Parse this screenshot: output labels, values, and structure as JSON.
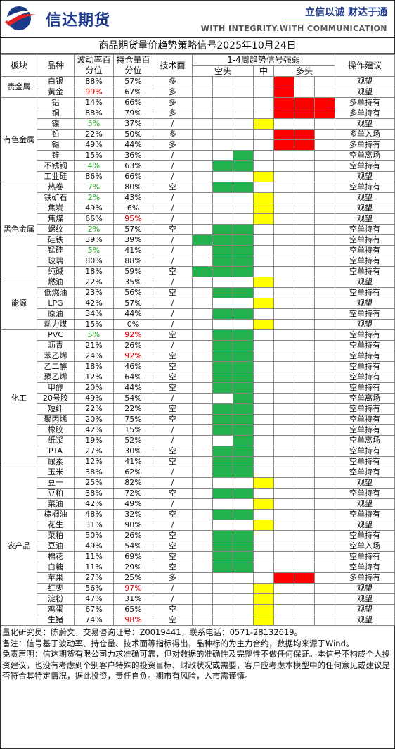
{
  "header": {
    "brand": "信达期货",
    "slogan": "立信以诚  财达于通",
    "tagline": "WITH INTEGRITY.WITH COMMUNICATION"
  },
  "title": "商品期货量价趋势策略信号2025年10月24日",
  "columns": {
    "sector": "板块",
    "variety": "品种",
    "volatility": "波动率百分位",
    "open_interest": "持仓量百分位",
    "technical": "技术面",
    "signal": "1-4周趋势信号强弱",
    "short": "空头",
    "mid": "中",
    "long": "多头",
    "advice": "操作建议"
  },
  "colors": {
    "red": "#ff0000",
    "green": "#22b14c",
    "yellow": "#ffff00",
    "red_text": "#e00000",
    "green_text": "#1fa51f"
  },
  "groups": [
    {
      "sector": "贵金属",
      "rows": [
        {
          "name": "白银",
          "vol": "88%",
          "oi": "57%",
          "tech": "多",
          "sig": "L1",
          "advice": "观望"
        },
        {
          "name": "黄金",
          "vol": "99%",
          "vol_color": "red",
          "oi": "67%",
          "tech": "多",
          "sig": "L1",
          "advice": "观望"
        }
      ]
    },
    {
      "sector": "有色金属",
      "rows": [
        {
          "name": "铝",
          "vol": "14%",
          "oi": "66%",
          "tech": "多",
          "sig": "L3",
          "advice": "多单持有"
        },
        {
          "name": "铜",
          "vol": "88%",
          "oi": "79%",
          "tech": "多",
          "sig": "L3",
          "advice": "多单持有"
        },
        {
          "name": "镍",
          "vol": "5%",
          "vol_color": "green",
          "oi": "37%",
          "tech": "/",
          "sig": "M",
          "advice": "观望"
        },
        {
          "name": "铅",
          "vol": "22%",
          "oi": "50%",
          "tech": "多",
          "sig": "L2",
          "advice": "多单入场"
        },
        {
          "name": "锡",
          "vol": "49%",
          "oi": "44%",
          "tech": "多",
          "sig": "L2",
          "advice": "多单持有"
        },
        {
          "name": "锌",
          "vol": "15%",
          "oi": "36%",
          "tech": "/",
          "sig": "S1",
          "advice": "空单离场"
        },
        {
          "name": "不锈钢",
          "vol": "4%",
          "vol_color": "green",
          "oi": "63%",
          "tech": "/",
          "sig": "S2",
          "advice": "空单持有"
        },
        {
          "name": "工业硅",
          "vol": "86%",
          "oi": "66%",
          "tech": "/",
          "sig": "M",
          "advice": "观望"
        }
      ]
    },
    {
      "sector": "黑色金属",
      "rows": [
        {
          "name": "热卷",
          "vol": "7%",
          "vol_color": "green",
          "oi": "80%",
          "tech": "空",
          "sig": "S2",
          "advice": "空单持有"
        },
        {
          "name": "铁矿石",
          "vol": "2%",
          "vol_color": "green",
          "oi": "43%",
          "tech": "/",
          "sig": "M",
          "advice": "观望"
        },
        {
          "name": "焦炭",
          "vol": "49%",
          "oi": "6%",
          "tech": "/",
          "sig": "M",
          "advice": "观望"
        },
        {
          "name": "焦煤",
          "vol": "66%",
          "oi": "95%",
          "oi_color": "red",
          "tech": "/",
          "sig": "M",
          "advice": "观望"
        },
        {
          "name": "螺纹",
          "vol": "2%",
          "vol_color": "green",
          "oi": "57%",
          "tech": "空",
          "sig": "S2",
          "advice": "空单持有"
        },
        {
          "name": "硅铁",
          "vol": "39%",
          "oi": "39%",
          "tech": "/",
          "sig": "S3",
          "advice": "空单持有"
        },
        {
          "name": "锰硅",
          "vol": "5%",
          "vol_color": "green",
          "oi": "41%",
          "tech": "/",
          "sig": "S2",
          "advice": "空单持有"
        },
        {
          "name": "玻璃",
          "vol": "80%",
          "oi": "88%",
          "tech": "/",
          "sig": "S2",
          "advice": "空单持有"
        },
        {
          "name": "纯碱",
          "vol": "18%",
          "oi": "59%",
          "tech": "空",
          "sig": "S3",
          "advice": "空单持有"
        }
      ]
    },
    {
      "sector": "能源",
      "rows": [
        {
          "name": "燃油",
          "vol": "22%",
          "oi": "35%",
          "tech": "/",
          "sig": "M",
          "advice": "观望"
        },
        {
          "name": "低燃油",
          "vol": "23%",
          "oi": "56%",
          "tech": "空",
          "sig": "S2",
          "advice": "空单持有"
        },
        {
          "name": "LPG",
          "vol": "42%",
          "oi": "57%",
          "tech": "/",
          "sig": "M",
          "advice": "观望"
        },
        {
          "name": "原油",
          "vol": "34%",
          "oi": "44%",
          "tech": "/",
          "sig": "S2",
          "advice": "空单持有"
        },
        {
          "name": "动力煤",
          "vol": "15%",
          "oi": "0%",
          "tech": "/",
          "sig": "M",
          "advice": "观望"
        }
      ]
    },
    {
      "sector": "化工",
      "rows": [
        {
          "name": "PVC",
          "vol": "5%",
          "vol_color": "green",
          "oi": "92%",
          "oi_color": "red",
          "tech": "空",
          "sig": "S2",
          "advice": "空单持有"
        },
        {
          "name": "沥青",
          "vol": "21%",
          "oi": "26%",
          "tech": "/",
          "sig": "S2",
          "advice": "空单持有"
        },
        {
          "name": "苯乙烯",
          "vol": "24%",
          "oi": "92%",
          "oi_color": "red",
          "tech": "空",
          "sig": "S2",
          "advice": "空单持有"
        },
        {
          "name": "乙二醇",
          "vol": "18%",
          "oi": "46%",
          "tech": "空",
          "sig": "S2",
          "advice": "空单持有"
        },
        {
          "name": "聚乙烯",
          "vol": "12%",
          "oi": "64%",
          "tech": "空",
          "sig": "S2",
          "advice": "空单持有"
        },
        {
          "name": "甲醇",
          "vol": "20%",
          "oi": "44%",
          "tech": "空",
          "sig": "S2",
          "advice": "空单持有"
        },
        {
          "name": "20号胶",
          "vol": "49%",
          "oi": "54%",
          "tech": "/",
          "sig": "S1",
          "advice": "空单离场"
        },
        {
          "name": "短纤",
          "vol": "22%",
          "oi": "22%",
          "tech": "空",
          "sig": "S2",
          "advice": "空单持有"
        },
        {
          "name": "聚丙烯",
          "vol": "20%",
          "oi": "75%",
          "tech": "空",
          "sig": "S2",
          "advice": "空单持有"
        },
        {
          "name": "橡胶",
          "vol": "42%",
          "oi": "15%",
          "tech": "/",
          "sig": "S2",
          "advice": "空单持有"
        },
        {
          "name": "纸浆",
          "vol": "19%",
          "oi": "52%",
          "tech": "/",
          "sig": "S1",
          "advice": "空单离场"
        },
        {
          "name": "PTA",
          "vol": "27%",
          "oi": "30%",
          "tech": "空",
          "sig": "S2",
          "advice": "空单持有"
        },
        {
          "name": "尿素",
          "vol": "12%",
          "oi": "41%",
          "tech": "空",
          "sig": "S2",
          "advice": "空单持有"
        }
      ]
    },
    {
      "sector": "农产品",
      "rows": [
        {
          "name": "玉米",
          "vol": "38%",
          "oi": "62%",
          "tech": "/",
          "sig": "S2",
          "advice": "空单持有"
        },
        {
          "name": "豆一",
          "vol": "25%",
          "oi": "82%",
          "tech": "/",
          "sig": "M",
          "advice": "观望"
        },
        {
          "name": "豆粕",
          "vol": "38%",
          "oi": "72%",
          "tech": "空",
          "sig": "S2",
          "advice": "空单持有"
        },
        {
          "name": "菜油",
          "vol": "42%",
          "oi": "49%",
          "tech": "/",
          "sig": "M",
          "advice": "观望"
        },
        {
          "name": "棕榈油",
          "vol": "48%",
          "oi": "32%",
          "tech": "空",
          "sig": "S2",
          "advice": "空单持有"
        },
        {
          "name": "花生",
          "vol": "31%",
          "oi": "90%",
          "tech": "/",
          "sig": "M",
          "advice": "观望"
        },
        {
          "name": "菜粕",
          "vol": "50%",
          "oi": "26%",
          "tech": "空",
          "sig": "S2",
          "advice": "空单持有"
        },
        {
          "name": "豆油",
          "vol": "49%",
          "oi": "54%",
          "tech": "空",
          "sig": "S2",
          "advice": "空单入场"
        },
        {
          "name": "棉花",
          "vol": "11%",
          "oi": "69%",
          "tech": "空",
          "sig": "S2",
          "advice": "空单持有"
        },
        {
          "name": "白糖",
          "vol": "11%",
          "oi": "29%",
          "tech": "空",
          "sig": "S2",
          "advice": "空单持有"
        },
        {
          "name": "苹果",
          "vol": "27%",
          "oi": "25%",
          "tech": "多",
          "sig": "L2",
          "advice": "多单持有"
        },
        {
          "name": "红枣",
          "vol": "56%",
          "oi": "97%",
          "oi_color": "red",
          "tech": "/",
          "sig": "M",
          "advice": "观望"
        },
        {
          "name": "淀粉",
          "vol": "47%",
          "oi": "31%",
          "tech": "/",
          "sig": "M",
          "advice": "观望"
        },
        {
          "name": "鸡蛋",
          "vol": "67%",
          "oi": "65%",
          "tech": "空",
          "sig": "M",
          "advice": "观望"
        },
        {
          "name": "生猪",
          "vol": "74%",
          "oi": "98%",
          "oi_color": "red",
          "tech": "空",
          "sig": "M",
          "advice": "观望"
        }
      ]
    }
  ],
  "footer": {
    "researcher": "量化研究员：陈蔚文，交易咨询证号：Z0019441，联系电话：0571-28132619。",
    "note": "备注：信号基于波动率、持仓量、技术面等指标得出，品种标的为主力合约，数据均来源于Wind。",
    "disclaimer": "免责声明：信达期货有限公司力求准确可靠，但对数据的准确性及完整性不做任何保证。本信号不构成个人投资建议，也没有考虑到个别客户特殊的投资目标、财政状况或需要，客户应考虑本模型中的任何意见或建议是否符合其特定情况，据此投资，责任自负。期市有风险，入市需谨慎。"
  }
}
